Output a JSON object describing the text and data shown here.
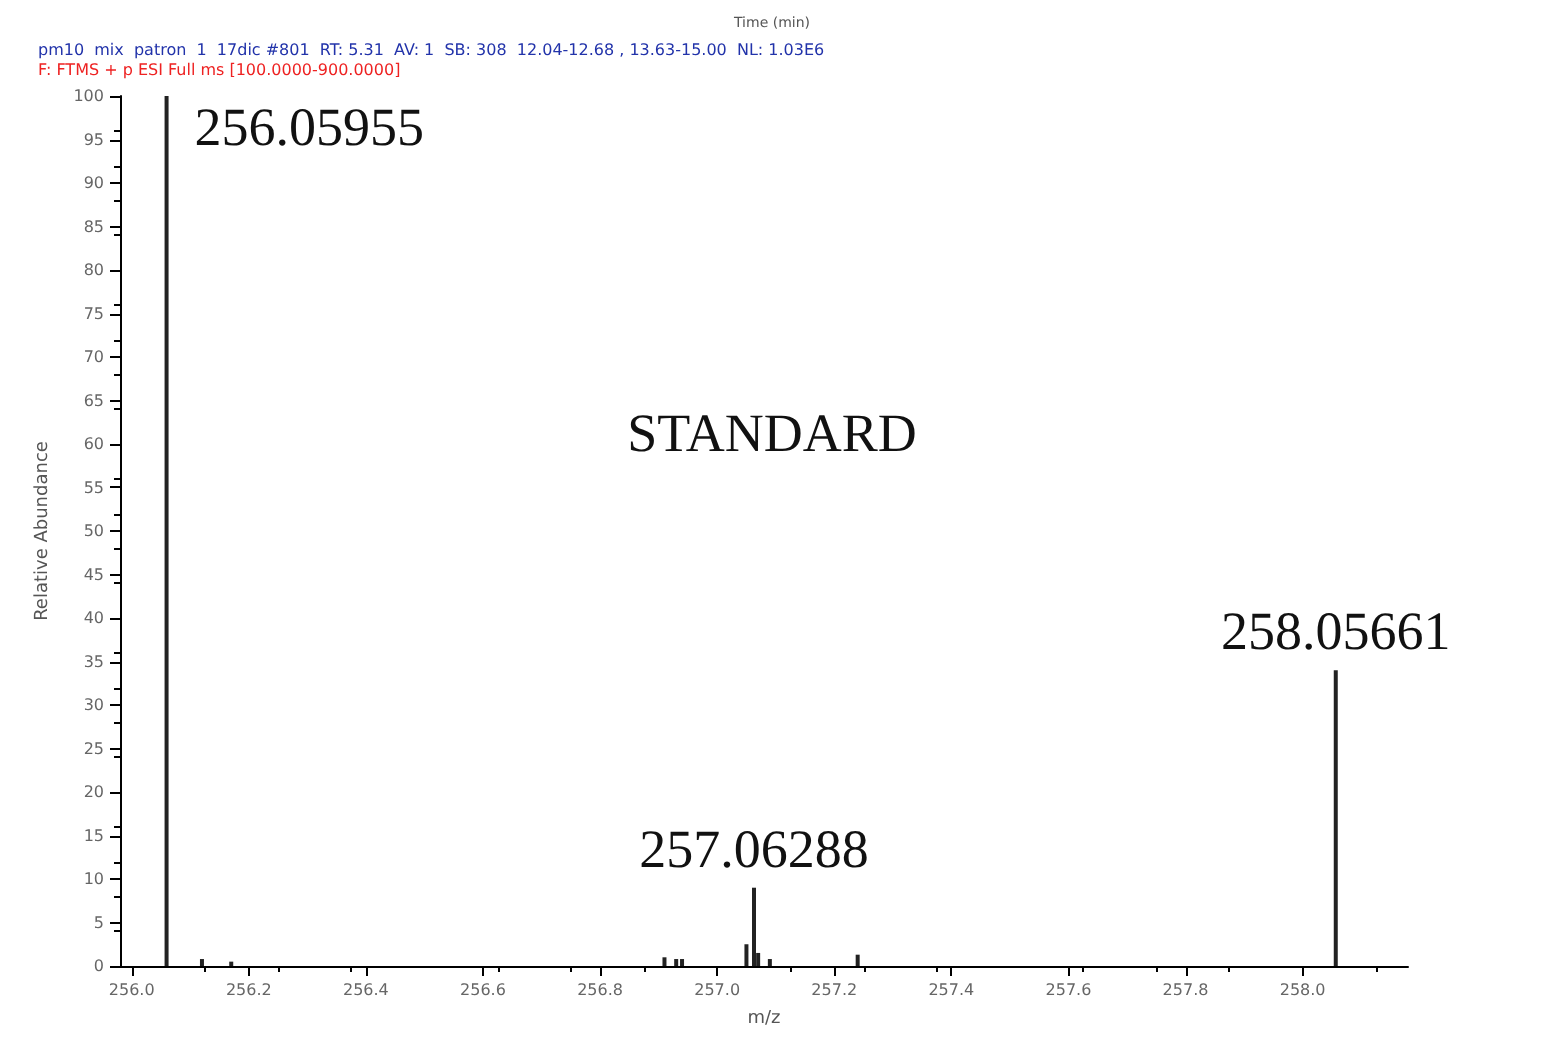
{
  "chart_data": {
    "type": "bar",
    "title": "pm10  mix  patron  1  17dic #801  RT: 5.31  AV: 1  SB: 308  12.04-12.68 , 13.63-15.00  NL: 1.03E6",
    "subtitle": "F: FTMS + p ESI Full ms [100.0000-900.0000]",
    "xlabel": "m/z",
    "ylabel": "Relative Abundance",
    "x": [
      256.05955,
      256.12,
      256.17,
      256.91,
      256.93,
      256.94,
      257.05,
      257.06288,
      257.07,
      257.09,
      257.24,
      258.05661
    ],
    "series": [
      {
        "color": "#222222",
        "values": [
          100,
          0.8,
          0.5,
          1,
          0.8,
          0.8,
          2.5,
          9,
          1.5,
          0.8,
          1.3,
          34
        ]
      }
    ],
    "xlim": [
      255.98,
      258.18
    ],
    "xticks": [
      {
        "value": 256,
        "label": "256.0"
      },
      256.2,
      256.4,
      256.6,
      256.8,
      {
        "value": 257,
        "label": "257.0"
      },
      257.2,
      257.4,
      257.6,
      257.8,
      {
        "value": 258,
        "label": "258.0"
      }
    ],
    "ylim": [
      0,
      100
    ],
    "yticks": [
      0,
      5,
      10,
      15,
      20,
      25,
      30,
      35,
      40,
      45,
      50,
      55,
      60,
      65,
      70,
      75,
      80,
      85,
      90,
      95,
      100
    ],
    "grid": false,
    "annotations": [
      "Time (min)",
      "STANDARD",
      {
        "text": "256.05955",
        "x": 256.05955,
        "y": 100
      },
      {
        "text": "257.06288",
        "x": 257.06288,
        "y": 9
      },
      {
        "text": "258.05661",
        "x": 258.05661,
        "y": 34
      }
    ]
  }
}
